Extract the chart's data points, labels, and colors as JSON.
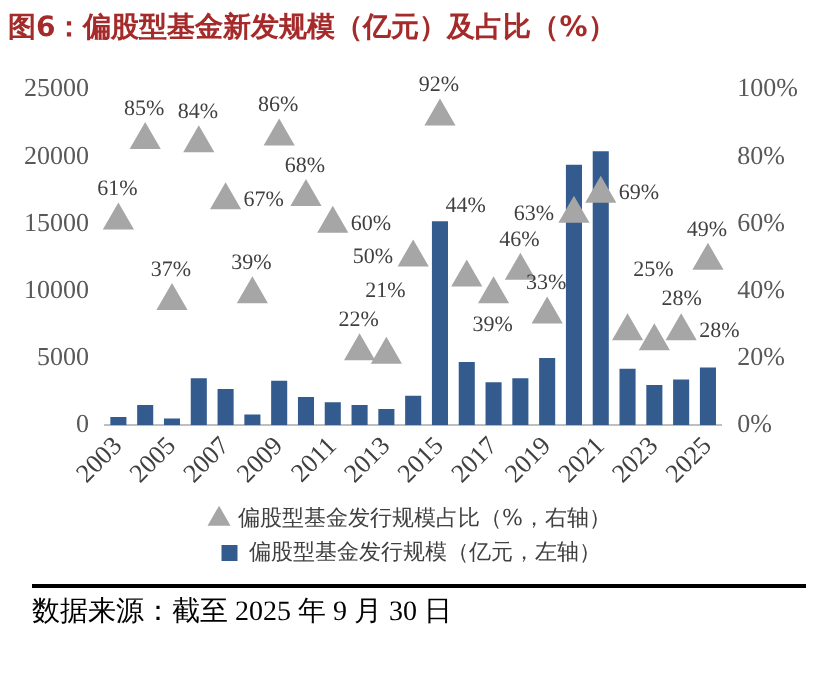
{
  "chart_data": {
    "type": "bar",
    "title": "图6：偏股型基金新发规模（亿元）及占比（%）",
    "categories": [
      "2003",
      null,
      "2005",
      null,
      "2007",
      null,
      "2009",
      null,
      "2011",
      null,
      "2013",
      null,
      "2015",
      null,
      "2017",
      null,
      "2019",
      null,
      "2021",
      null,
      "2023",
      null,
      "2025"
    ],
    "series": [
      {
        "name": "偏股型基金发行规模（亿元，左轴）",
        "color": "#335b8e",
        "values": [
          600,
          1500,
          500,
          3500,
          2700,
          800,
          3300,
          2100,
          1700,
          1500,
          1200,
          2200,
          15200,
          4700,
          3200,
          3500,
          5000,
          19400,
          20400,
          4200,
          3000,
          3400,
          4300
        ]
      },
      {
        "name": "偏股型基金发行规模占比（%，右轴）",
        "type": "scatter",
        "axis": "y2",
        "color": "#a6a6a6",
        "values": [
          61,
          85,
          37,
          84,
          67,
          39,
          86,
          68,
          60,
          22,
          21,
          50,
          92,
          44,
          39,
          46,
          33,
          63,
          69,
          28,
          25,
          28,
          49
        ],
        "value_labels": [
          "61%",
          "85%",
          "37%",
          "84%",
          "67%",
          "39%",
          "86%",
          "68%",
          "60%",
          "22%",
          "21%",
          "50%",
          "92%",
          "44%",
          "39%",
          "46%",
          "33%",
          "63%",
          "69%",
          "28%",
          "25%",
          "28%",
          "49%"
        ]
      }
    ],
    "ylim": [
      0,
      25000
    ],
    "yticks": [
      0,
      5000,
      10000,
      15000,
      20000,
      25000
    ],
    "y2lim": [
      0,
      100
    ],
    "y2ticks": [
      {
        "value": 0,
        "label": "0%"
      },
      {
        "value": 20,
        "label": "20%"
      },
      {
        "value": 40,
        "label": "40%"
      },
      {
        "value": 60,
        "label": "60%"
      },
      {
        "value": 80,
        "label": "80%"
      },
      {
        "value": 100,
        "label": "100%"
      }
    ],
    "marker": "triangle",
    "grid": false,
    "legend": "bottom",
    "annotations": [
      "数据来源：截至 2025 年 9 月 30 日"
    ]
  }
}
